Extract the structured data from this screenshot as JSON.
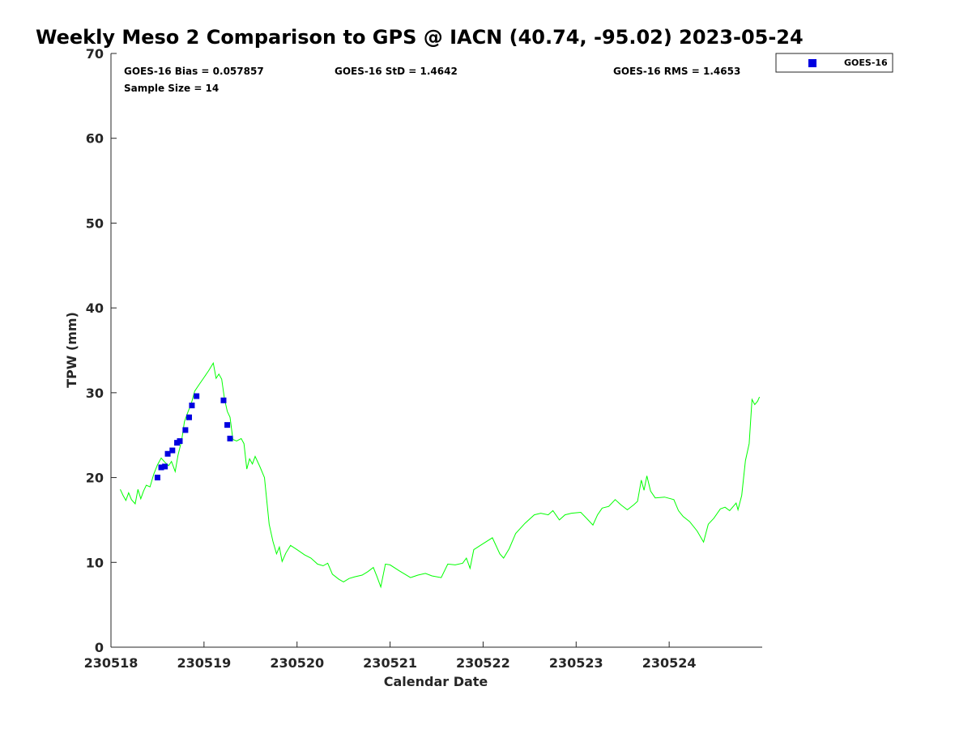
{
  "chart_data": {
    "type": "line",
    "title": "Weekly Meso 2 Comparison to GPS @ IACN (40.74, -95.02) 2023-05-24",
    "xlabel": "Calendar Date",
    "ylabel": "TPW (mm)",
    "xlim": [
      230518,
      230525
    ],
    "ylim": [
      0,
      70
    ],
    "x_ticks": [
      230518,
      230519,
      230520,
      230521,
      230522,
      230523,
      230524
    ],
    "x_tick_labels": [
      "230518",
      "230519",
      "230520",
      "230521",
      "230522",
      "230523",
      "230524"
    ],
    "y_ticks": [
      0,
      10,
      20,
      30,
      40,
      50,
      60,
      70
    ],
    "y_tick_labels": [
      "0",
      "10",
      "20",
      "30",
      "40",
      "50",
      "60",
      "70"
    ],
    "grid": false,
    "legend": {
      "placement": "outside-top-right",
      "entries": [
        "GOES-16"
      ]
    },
    "stats": {
      "bias": "GOES-16 Bias = 0.057857",
      "std": "GOES-16 StD = 1.4642",
      "rms": "GOES-16 RMS = 1.4653",
      "sample_size": "Sample Size = 14"
    },
    "series": [
      {
        "style": "line",
        "color": "#00ff00",
        "points": [
          [
            230518.1,
            18.6
          ],
          [
            230518.13,
            17.9
          ],
          [
            230518.16,
            17.3
          ],
          [
            230518.19,
            18.2
          ],
          [
            230518.22,
            17.4
          ],
          [
            230518.26,
            16.9
          ],
          [
            230518.29,
            18.6
          ],
          [
            230518.32,
            17.5
          ],
          [
            230518.35,
            18.4
          ],
          [
            230518.38,
            19.1
          ],
          [
            230518.42,
            18.9
          ],
          [
            230518.46,
            20.4
          ],
          [
            230518.5,
            21.5
          ],
          [
            230518.54,
            22.3
          ],
          [
            230518.58,
            21.8
          ],
          [
            230518.62,
            21.4
          ],
          [
            230518.65,
            21.9
          ],
          [
            230518.69,
            20.7
          ],
          [
            230518.72,
            22.6
          ],
          [
            230518.76,
            24.4
          ],
          [
            230518.79,
            26.6
          ],
          [
            230518.83,
            27.8
          ],
          [
            230518.86,
            28.6
          ],
          [
            230518.9,
            30.2
          ],
          [
            230518.95,
            31.0
          ],
          [
            230519.0,
            31.8
          ],
          [
            230519.05,
            32.6
          ],
          [
            230519.1,
            33.5
          ],
          [
            230519.13,
            31.7
          ],
          [
            230519.16,
            32.2
          ],
          [
            230519.19,
            31.6
          ],
          [
            230519.22,
            29.3
          ],
          [
            230519.25,
            27.8
          ],
          [
            230519.28,
            27.1
          ],
          [
            230519.31,
            24.5
          ],
          [
            230519.35,
            24.3
          ],
          [
            230519.4,
            24.6
          ],
          [
            230519.43,
            24.0
          ],
          [
            230519.46,
            21.0
          ],
          [
            230519.49,
            22.2
          ],
          [
            230519.52,
            21.6
          ],
          [
            230519.55,
            22.5
          ],
          [
            230519.6,
            21.3
          ],
          [
            230519.65,
            20.0
          ],
          [
            230519.7,
            14.5
          ],
          [
            230519.74,
            12.5
          ],
          [
            230519.78,
            11.0
          ],
          [
            230519.81,
            11.8
          ],
          [
            230519.84,
            10.1
          ],
          [
            230519.88,
            11.1
          ],
          [
            230519.93,
            12.0
          ],
          [
            230520.0,
            11.5
          ],
          [
            230520.08,
            10.9
          ],
          [
            230520.15,
            10.5
          ],
          [
            230520.22,
            9.8
          ],
          [
            230520.28,
            9.6
          ],
          [
            230520.33,
            9.9
          ],
          [
            230520.38,
            8.6
          ],
          [
            230520.45,
            8.0
          ],
          [
            230520.5,
            7.7
          ],
          [
            230520.56,
            8.1
          ],
          [
            230520.62,
            8.3
          ],
          [
            230520.7,
            8.5
          ],
          [
            230520.76,
            8.9
          ],
          [
            230520.82,
            9.4
          ],
          [
            230520.86,
            8.3
          ],
          [
            230520.9,
            7.1
          ],
          [
            230520.95,
            9.8
          ],
          [
            230521.0,
            9.7
          ],
          [
            230521.1,
            9.0
          ],
          [
            230521.22,
            8.2
          ],
          [
            230521.3,
            8.5
          ],
          [
            230521.38,
            8.7
          ],
          [
            230521.45,
            8.4
          ],
          [
            230521.55,
            8.2
          ],
          [
            230521.62,
            9.8
          ],
          [
            230521.7,
            9.7
          ],
          [
            230521.78,
            9.9
          ],
          [
            230521.82,
            10.5
          ],
          [
            230521.86,
            9.3
          ],
          [
            230521.9,
            11.5
          ],
          [
            230522.0,
            12.2
          ],
          [
            230522.1,
            12.9
          ],
          [
            230522.18,
            11.0
          ],
          [
            230522.22,
            10.5
          ],
          [
            230522.28,
            11.6
          ],
          [
            230522.35,
            13.4
          ],
          [
            230522.45,
            14.6
          ],
          [
            230522.55,
            15.6
          ],
          [
            230522.62,
            15.8
          ],
          [
            230522.7,
            15.6
          ],
          [
            230522.75,
            16.1
          ],
          [
            230522.82,
            15.0
          ],
          [
            230522.88,
            15.6
          ],
          [
            230522.95,
            15.8
          ],
          [
            230523.05,
            15.9
          ],
          [
            230523.12,
            15.1
          ],
          [
            230523.18,
            14.4
          ],
          [
            230523.23,
            15.6
          ],
          [
            230523.28,
            16.4
          ],
          [
            230523.35,
            16.6
          ],
          [
            230523.42,
            17.4
          ],
          [
            230523.48,
            16.8
          ],
          [
            230523.55,
            16.2
          ],
          [
            230523.62,
            16.8
          ],
          [
            230523.66,
            17.2
          ],
          [
            230523.7,
            19.7
          ],
          [
            230523.73,
            18.5
          ],
          [
            230523.76,
            20.2
          ],
          [
            230523.8,
            18.4
          ],
          [
            230523.85,
            17.6
          ],
          [
            230523.95,
            17.7
          ],
          [
            230524.05,
            17.4
          ],
          [
            230524.1,
            16.1
          ],
          [
            230524.15,
            15.4
          ],
          [
            230524.22,
            14.8
          ],
          [
            230524.3,
            13.7
          ],
          [
            230524.37,
            12.4
          ],
          [
            230524.42,
            14.5
          ],
          [
            230524.48,
            15.2
          ],
          [
            230524.55,
            16.3
          ],
          [
            230524.6,
            16.5
          ],
          [
            230524.65,
            16.1
          ],
          [
            230524.72,
            17.0
          ],
          [
            230524.74,
            16.2
          ],
          [
            230524.78,
            17.9
          ],
          [
            230524.82,
            22.0
          ],
          [
            230524.86,
            24.0
          ],
          [
            230524.89,
            29.2
          ],
          [
            230524.92,
            28.6
          ],
          [
            230524.95,
            29.0
          ],
          [
            230524.97,
            29.5
          ]
        ]
      },
      {
        "name": "GOES-16",
        "style": "scatter",
        "marker": "square",
        "color": "#0000e0",
        "points": [
          [
            230518.5,
            20.0
          ],
          [
            230518.54,
            21.2
          ],
          [
            230518.58,
            21.3
          ],
          [
            230518.61,
            22.8
          ],
          [
            230518.66,
            23.2
          ],
          [
            230518.71,
            24.1
          ],
          [
            230518.74,
            24.3
          ],
          [
            230518.8,
            25.6
          ],
          [
            230518.84,
            27.1
          ],
          [
            230518.87,
            28.5
          ],
          [
            230518.92,
            29.6
          ],
          [
            230519.21,
            29.1
          ],
          [
            230519.25,
            26.2
          ],
          [
            230519.28,
            24.6
          ]
        ]
      }
    ]
  }
}
